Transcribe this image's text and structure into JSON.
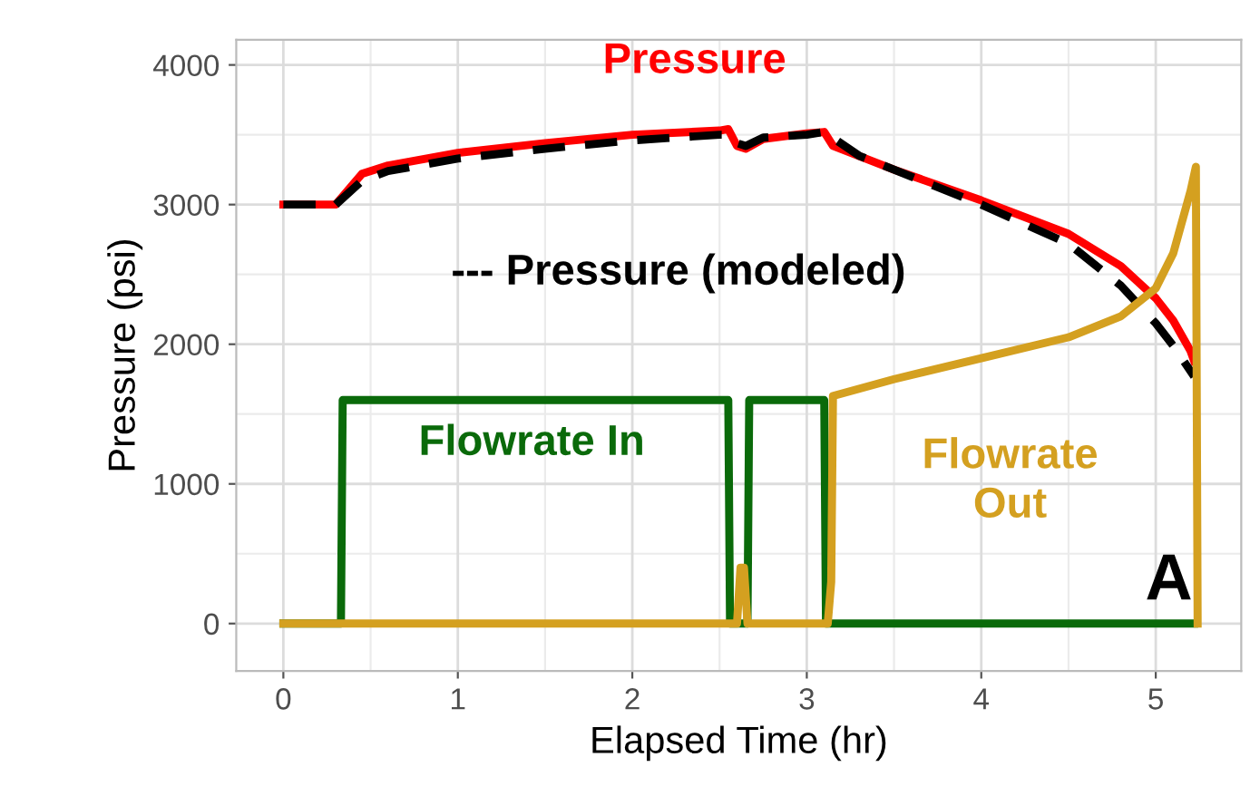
{
  "chart_data": {
    "type": "line",
    "xlabel": "Elapsed Time (hr)",
    "ylabel": "Pressure (psi)",
    "xlim": [
      -0.27,
      5.49
    ],
    "xticks": [
      0,
      1,
      2,
      3,
      4,
      5
    ],
    "ylim": [
      -340,
      4180
    ],
    "yticks": [
      0,
      1000,
      2000,
      3000,
      4000
    ],
    "grid": true,
    "legend": false,
    "series": [
      {
        "name": "Pressure",
        "color": "#ff0000",
        "line_style": "solid",
        "x": [
          0,
          0.3,
          0.45,
          0.6,
          1.0,
          1.5,
          2.0,
          2.5,
          2.55,
          2.6,
          2.65,
          2.75,
          3.0,
          3.1,
          3.15,
          3.5,
          4.0,
          4.5,
          4.8,
          5.0,
          5.1,
          5.2,
          5.22
        ],
        "values": [
          3000,
          3000,
          3220,
          3280,
          3370,
          3440,
          3500,
          3530,
          3540,
          3420,
          3400,
          3470,
          3510,
          3520,
          3420,
          3250,
          3030,
          2790,
          2560,
          2330,
          2170,
          1950,
          1880
        ]
      },
      {
        "name": "--- Pressure (modeled)",
        "color": "#000000",
        "line_style": "dashed",
        "x": [
          0,
          0.3,
          0.45,
          0.6,
          1.0,
          1.5,
          2.0,
          2.5,
          2.55,
          2.6,
          2.65,
          2.75,
          3.0,
          3.1,
          3.3,
          3.6,
          4.0,
          4.5,
          4.8,
          5.0,
          5.1,
          5.22
        ],
        "values": [
          3000,
          3000,
          3170,
          3240,
          3330,
          3400,
          3460,
          3500,
          3500,
          3440,
          3420,
          3480,
          3500,
          3520,
          3350,
          3200,
          3000,
          2720,
          2420,
          2150,
          1990,
          1770
        ]
      },
      {
        "name": "Flowrate In",
        "color": "#0a6a0a",
        "line_style": "solid",
        "x": [
          0,
          0.33,
          0.34,
          2.55,
          2.56,
          2.66,
          2.67,
          3.1,
          3.11,
          5.22
        ],
        "values": [
          0,
          0,
          1600,
          1600,
          0,
          0,
          1600,
          1600,
          0,
          0
        ]
      },
      {
        "name": "Flowrate\nOut",
        "color": "#d4a020",
        "line_style": "solid",
        "x": [
          0,
          2.6,
          2.62,
          2.64,
          2.66,
          3.12,
          3.14,
          3.15,
          3.5,
          4.0,
          4.5,
          4.8,
          5.0,
          5.1,
          5.2,
          5.23,
          5.24
        ],
        "values": [
          0,
          0,
          400,
          400,
          0,
          0,
          300,
          1630,
          1750,
          1900,
          2050,
          2200,
          2400,
          2650,
          3100,
          3270,
          0
        ]
      }
    ],
    "annotations": [
      "A"
    ]
  }
}
